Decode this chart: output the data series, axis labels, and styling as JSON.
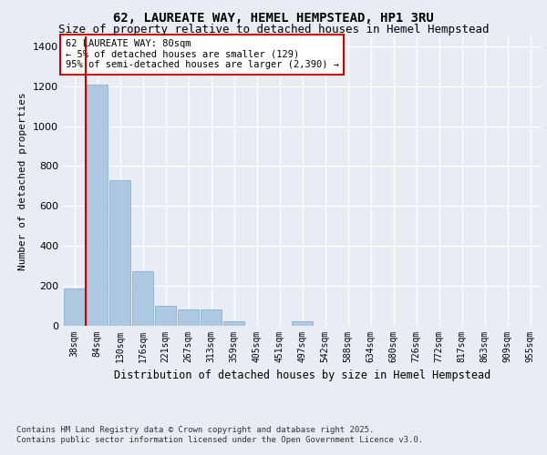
{
  "title1": "62, LAUREATE WAY, HEMEL HEMPSTEAD, HP1 3RU",
  "title2": "Size of property relative to detached houses in Hemel Hempstead",
  "xlabel": "Distribution of detached houses by size in Hemel Hempstead",
  "ylabel": "Number of detached properties",
  "annotation_title": "62 LAUREATE WAY: 80sqm",
  "annotation_line1": "← 5% of detached houses are smaller (129)",
  "annotation_line2": "95% of semi-detached houses are larger (2,390) →",
  "footer1": "Contains HM Land Registry data © Crown copyright and database right 2025.",
  "footer2": "Contains public sector information licensed under the Open Government Licence v3.0.",
  "categories": [
    "38sqm",
    "84sqm",
    "130sqm",
    "176sqm",
    "221sqm",
    "267sqm",
    "313sqm",
    "359sqm",
    "405sqm",
    "451sqm",
    "497sqm",
    "542sqm",
    "588sqm",
    "634sqm",
    "680sqm",
    "726sqm",
    "772sqm",
    "817sqm",
    "863sqm",
    "909sqm",
    "955sqm"
  ],
  "values": [
    185,
    1210,
    730,
    270,
    100,
    80,
    80,
    20,
    0,
    0,
    20,
    0,
    0,
    0,
    0,
    0,
    0,
    0,
    0,
    0,
    0
  ],
  "bar_color": "#adc8e0",
  "bar_edge_color": "#7aaac8",
  "vline_color": "#cc0000",
  "vline_x": 0.5,
  "annotation_box_color": "#cc0000",
  "ylim": [
    0,
    1450
  ],
  "yticks": [
    0,
    200,
    400,
    600,
    800,
    1000,
    1200,
    1400
  ],
  "background_color": "#e8edf4",
  "plot_background": "#e8edf4",
  "grid_color": "#ffffff",
  "title1_fontsize": 10,
  "title2_fontsize": 9
}
